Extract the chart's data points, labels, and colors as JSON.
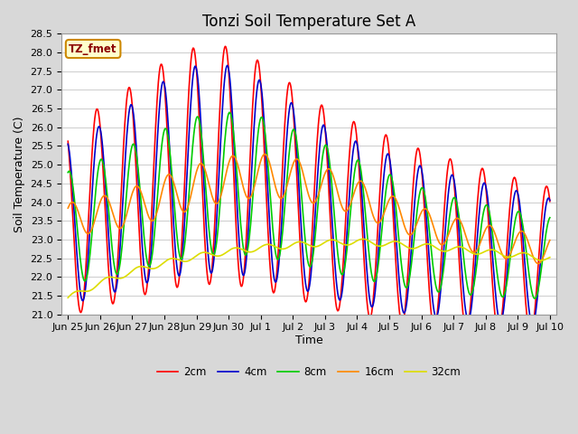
{
  "title": "Tonzi Soil Temperature Set A",
  "xlabel": "Time",
  "ylabel": "Soil Temperature (C)",
  "ylim": [
    21.0,
    28.5
  ],
  "figure_bg": "#d8d8d8",
  "plot_bg": "#ffffff",
  "grid_color": "#d0d0d0",
  "annotation_text": "TZ_fmet",
  "annotation_bg": "#ffffcc",
  "annotation_border": "#cc8800",
  "legend_labels": [
    "2cm",
    "4cm",
    "8cm",
    "16cm",
    "32cm"
  ],
  "legend_colors": [
    "#ff0000",
    "#0000cc",
    "#00cc00",
    "#ff8800",
    "#dddd00"
  ],
  "tick_labels_x": [
    "Jun 25",
    "Jun 26",
    "Jun 27",
    "Jun 28",
    "Jun 29",
    "Jun 30",
    "Jul 1",
    "Jul 2",
    "Jul 3",
    "Jul 4",
    "Jul 5",
    "Jul 6",
    "Jul 7",
    "Jul 8",
    "Jul 9",
    "Jul 10"
  ],
  "title_fontsize": 12,
  "axis_label_fontsize": 9,
  "tick_fontsize": 8,
  "line_width": 1.2,
  "figsize": [
    6.4,
    4.8
  ],
  "dpi": 100
}
